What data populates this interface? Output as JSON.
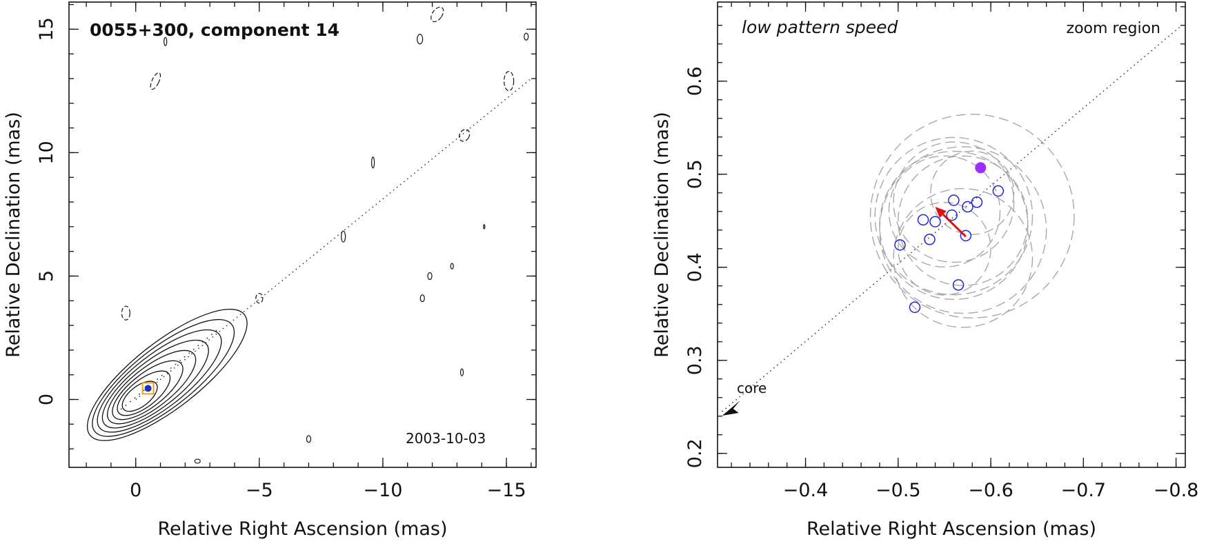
{
  "chart_data": [
    {
      "type": "contour",
      "title": "0055+300, component 14",
      "date_label": "2003-10-03",
      "xlabel": "Relative Right Ascension (mas)",
      "ylabel": "Relative Declination (mas)",
      "xlim": [
        2.7,
        -16.2
      ],
      "ylim": [
        -2.75,
        16.1
      ],
      "x_ticks": [
        0,
        -5,
        -10,
        -15
      ],
      "x_tick_labels": [
        "0",
        "−5",
        "−10",
        "−15"
      ],
      "y_ticks": [
        0,
        5,
        10,
        15
      ],
      "y_tick_labels": [
        "0",
        "5",
        "10",
        "15"
      ],
      "jet_axis": {
        "x": [
          0,
          -16
        ],
        "y": [
          0,
          13
        ]
      },
      "core_contours": {
        "center": [
          0,
          0
        ],
        "levels": 8,
        "ridge": [
          [
            0.6,
            -0.4
          ],
          [
            -3.4,
            2.9
          ]
        ]
      },
      "component_marker": {
        "x": -0.5,
        "y": 0.45,
        "size_mas": 0.6
      },
      "colors": {
        "contour": "#111111",
        "marker_box": "#f0a020",
        "marker_fill": "#2030c0"
      },
      "grid": false
    },
    {
      "type": "scatter",
      "title": "low pattern speed",
      "region_label": "zoom region",
      "core_label": "core",
      "xlabel": "Relative Right Ascension (mas)",
      "ylabel": "Relative Declination (mas)",
      "xlim": [
        -0.305,
        -0.81
      ],
      "ylim": [
        0.185,
        0.685
      ],
      "x_ticks": [
        -0.4,
        -0.5,
        -0.6,
        -0.7,
        -0.8
      ],
      "x_tick_labels": [
        "−0.4",
        "−0.5",
        "−0.6",
        "−0.7",
        "−0.8"
      ],
      "y_ticks": [
        0.2,
        0.3,
        0.4,
        0.5,
        0.6
      ],
      "y_tick_labels": [
        "0.2",
        "0.3",
        "0.4",
        "0.5",
        "0.6"
      ],
      "jet_axis": {
        "x": [
          -0.31,
          -0.805
        ],
        "y": [
          0.245,
          0.659
        ]
      },
      "points": {
        "x": [
          -0.502,
          -0.527,
          -0.534,
          -0.54,
          -0.558,
          -0.56,
          -0.565,
          -0.573,
          -0.575,
          -0.585,
          -0.608,
          -0.518
        ],
        "y": [
          0.424,
          0.451,
          0.43,
          0.449,
          0.456,
          0.472,
          0.381,
          0.434,
          0.465,
          0.47,
          0.482,
          0.357
        ]
      },
      "uncertainty_circles": {
        "x": [
          -0.58,
          -0.57,
          -0.56,
          -0.55,
          -0.57,
          -0.55,
          -0.56,
          -0.58,
          -0.57,
          -0.56
        ],
        "y": [
          0.455,
          0.45,
          0.445,
          0.46,
          0.44,
          0.42,
          0.47,
          0.48,
          0.41,
          0.455
        ],
        "r": [
          0.11,
          0.07,
          0.08,
          0.06,
          0.09,
          0.05,
          0.065,
          0.045,
          0.075,
          0.085
        ]
      },
      "mean_position": {
        "x": -0.589,
        "y": 0.507
      },
      "velocity_arrow": {
        "from": [
          -0.573,
          0.433
        ],
        "to": [
          -0.54,
          0.465
        ]
      },
      "colors": {
        "points": "#2020dd",
        "mean": "#9b30ff",
        "arrow": "#e01010",
        "circles": "#a8a8a8"
      },
      "grid": false
    }
  ]
}
